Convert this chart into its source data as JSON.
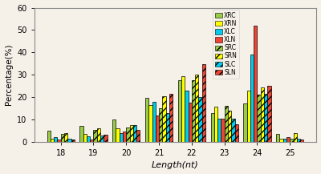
{
  "categories": [
    18,
    19,
    20,
    21,
    22,
    23,
    24,
    25
  ],
  "series": {
    "XRC": [
      4.8,
      7.0,
      10.0,
      19.5,
      27.5,
      12.8,
      17.0,
      3.5
    ],
    "XRN": [
      1.5,
      3.5,
      6.0,
      16.5,
      29.5,
      15.8,
      23.0,
      1.5
    ],
    "XLC": [
      2.0,
      2.5,
      4.0,
      18.0,
      23.0,
      10.5,
      39.0,
      1.5
    ],
    "XLN": [
      1.0,
      1.2,
      4.5,
      11.8,
      17.5,
      10.5,
      52.0,
      2.0
    ],
    "SRC": [
      3.5,
      5.5,
      6.5,
      15.0,
      27.5,
      16.0,
      21.0,
      1.5
    ],
    "SRN": [
      4.0,
      6.0,
      7.5,
      20.5,
      30.0,
      14.0,
      24.5,
      4.0
    ],
    "SLC": [
      1.5,
      2.8,
      7.5,
      13.0,
      20.0,
      10.5,
      21.5,
      1.5
    ],
    "SLN": [
      1.2,
      3.0,
      5.5,
      21.5,
      34.8,
      8.0,
      25.0,
      1.2
    ]
  },
  "colors": {
    "XRC": "#99cc44",
    "XRN": "#ffff00",
    "XLC": "#00ccee",
    "XLN": "#ee4433",
    "SRC": "#99cc44",
    "SRN": "#ffff00",
    "SLC": "#00ccee",
    "SLN": "#ee4433"
  },
  "hatches": {
    "XRC": "",
    "XRN": "",
    "XLC": "",
    "XLN": "",
    "SRC": "////",
    "SRN": "////",
    "SLC": "////",
    "SLN": "////"
  },
  "ylabel": "Percentage(%)",
  "xlabel": "Length(nt)",
  "ylim": [
    0,
    60
  ],
  "yticks": [
    0,
    10,
    20,
    30,
    40,
    50,
    60
  ],
  "legend_order": [
    "XRC",
    "XRN",
    "XLC",
    "XLN",
    "SRC",
    "SRN",
    "SLC",
    "SLN"
  ],
  "bg_color": "#f5f0e8"
}
